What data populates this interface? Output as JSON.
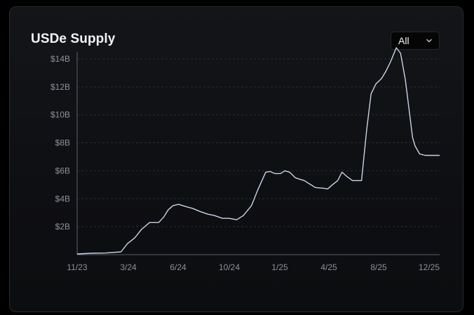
{
  "header": {
    "title": "USDe Supply",
    "range_selected": "All"
  },
  "icons": {
    "range_chevron": "chevron-down-icon"
  },
  "colors": {
    "background": "#0e0f12",
    "line": "#c9d4ea",
    "grid": "#2b2e36",
    "axis": "#5b5f6a",
    "text": "#f2f3f5",
    "tick_text": "#8d919b"
  },
  "chart_data": {
    "type": "line",
    "title": "USDe Supply",
    "xlabel": "",
    "ylabel": "",
    "x_tick_labels": [
      "11/23",
      "3/24",
      "6/24",
      "10/24",
      "1/25",
      "4/25",
      "8/25",
      "12/25"
    ],
    "y_tick_labels": [
      "$2B",
      "$4B",
      "$6B",
      "$8B",
      "$10B",
      "$12B",
      "$14B"
    ],
    "y_ticks": [
      2,
      4,
      6,
      8,
      10,
      12,
      14
    ],
    "ylim": [
      0,
      14.5
    ],
    "x_range": [
      "2023-11",
      "2025-12"
    ],
    "grid": "horizontal dashed",
    "legend": "none",
    "y_unit": "$B",
    "series": [
      {
        "x": [
          "2023-11",
          "2023-12",
          "2024-01",
          "2024-02",
          "2024-02-15",
          "2024-03",
          "2024-03-15",
          "2024-04",
          "2024-04-10",
          "2024-04-20",
          "2024-05",
          "2024-05-10",
          "2024-05-20",
          "2024-06",
          "2024-06-10",
          "2024-06-20",
          "2024-07",
          "2024-07-15",
          "2024-08",
          "2024-08-15",
          "2024-09",
          "2024-09-15",
          "2024-10",
          "2024-10-15",
          "2024-11",
          "2024-11-15",
          "2024-12",
          "2024-12-10",
          "2024-12-20",
          "2025-01",
          "2025-01-10",
          "2025-01-20",
          "2025-02",
          "2025-02-10",
          "2025-02-20",
          "2025-03",
          "2025-03-15",
          "2025-04",
          "2025-04-10",
          "2025-04-20",
          "2025-05",
          "2025-05-10",
          "2025-05-20",
          "2025-06",
          "2025-06-10",
          "2025-06-20",
          "2025-07",
          "2025-07-10",
          "2025-07-20",
          "2025-08",
          "2025-08-10",
          "2025-08-20",
          "2025-09",
          "2025-09-10",
          "2025-09-20",
          "2025-10",
          "2025-10-05",
          "2025-10-10",
          "2025-10-20",
          "2025-11",
          "2025-11-10",
          "2025-11-20",
          "2025-12"
        ],
        "y": [
          0.05,
          0.1,
          0.12,
          0.2,
          0.8,
          1.2,
          1.8,
          2.3,
          2.3,
          2.3,
          2.7,
          3.2,
          3.5,
          3.6,
          3.5,
          3.4,
          3.3,
          3.1,
          2.9,
          2.8,
          2.6,
          2.6,
          2.5,
          2.8,
          3.5,
          4.7,
          5.9,
          5.95,
          5.8,
          5.8,
          6.0,
          5.9,
          5.5,
          5.4,
          5.3,
          5.1,
          4.8,
          4.75,
          4.7,
          5.0,
          5.3,
          5.9,
          5.6,
          5.3,
          5.3,
          5.3,
          9.0,
          11.5,
          12.2,
          12.6,
          13.1,
          13.8,
          14.8,
          14.4,
          12.5,
          9.5,
          8.4,
          7.8,
          7.2,
          7.1,
          7.1,
          7.1,
          7.1
        ]
      }
    ]
  }
}
